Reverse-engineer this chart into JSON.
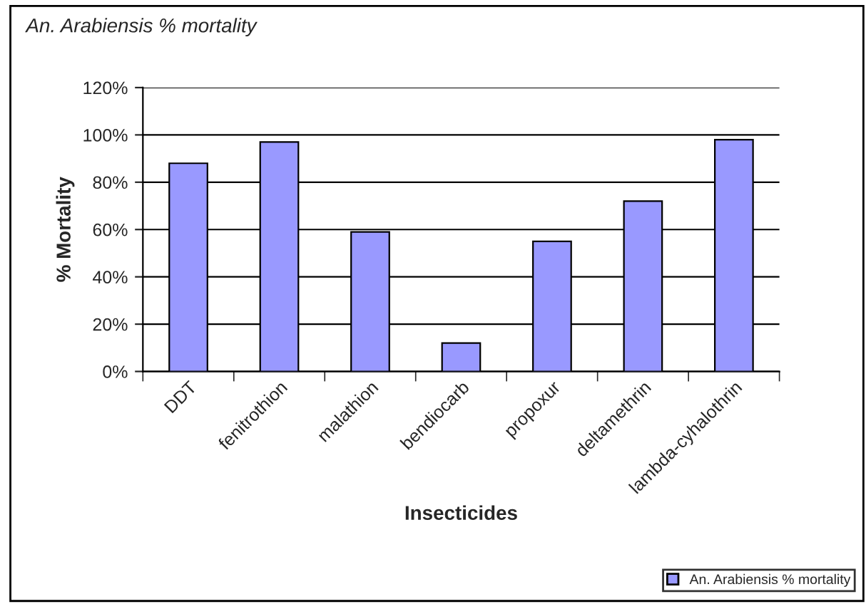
{
  "chart_data": {
    "type": "bar",
    "title": "An. Arabiensis % mortality",
    "xlabel": "Insecticides",
    "ylabel": "% Mortality",
    "categories": [
      "DDT",
      "fenitrothion",
      "malathion",
      "bendiocarb",
      "propoxur",
      "deltamethrin",
      "lambda-cyhalothrin"
    ],
    "series": [
      {
        "name": "An. Arabiensis % mortality",
        "color": "#9999ff",
        "values": [
          88,
          97,
          59,
          12,
          55,
          72,
          98
        ]
      }
    ],
    "ylim": [
      0,
      120
    ],
    "yticks": [
      {
        "value": 0,
        "label": "0%"
      },
      {
        "value": 20,
        "label": "20%"
      },
      {
        "value": 40,
        "label": "40%"
      },
      {
        "value": 60,
        "label": "60%"
      },
      {
        "value": 80,
        "label": "80%"
      },
      {
        "value": 100,
        "label": "100%"
      },
      {
        "value": 120,
        "label": "120%"
      }
    ],
    "grid": "y",
    "legend": "bottom right"
  }
}
